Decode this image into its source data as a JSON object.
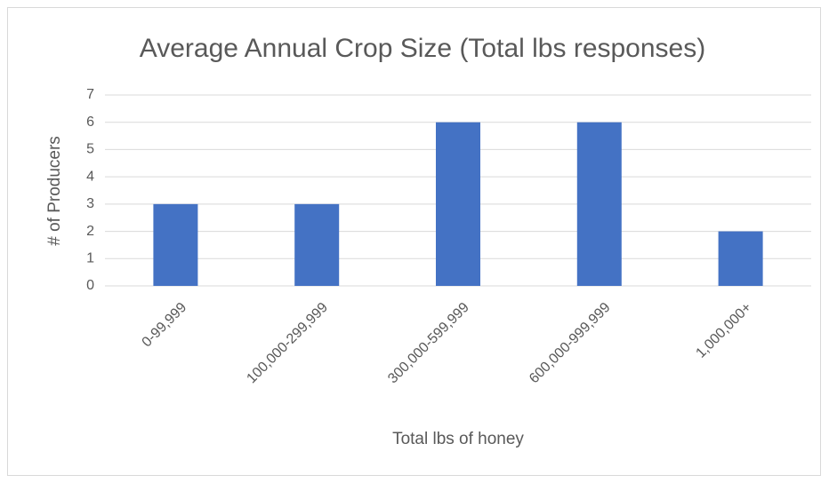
{
  "chart_data": {
    "type": "bar",
    "title": "Average Annual Crop Size (Total lbs responses)",
    "x_label": "Total lbs of honey",
    "y_label": "# of Producers",
    "categories": [
      "0-99,999",
      "100,000-299,999",
      "300,000-599,999",
      "600,000-999,999",
      "1,000,000+"
    ],
    "values": [
      3,
      3,
      6,
      6,
      2
    ],
    "color": "#4472c4",
    "ylim": [
      0,
      7
    ],
    "yticks": [
      0,
      1,
      2,
      3,
      4,
      5,
      6,
      7
    ],
    "grid": true
  }
}
